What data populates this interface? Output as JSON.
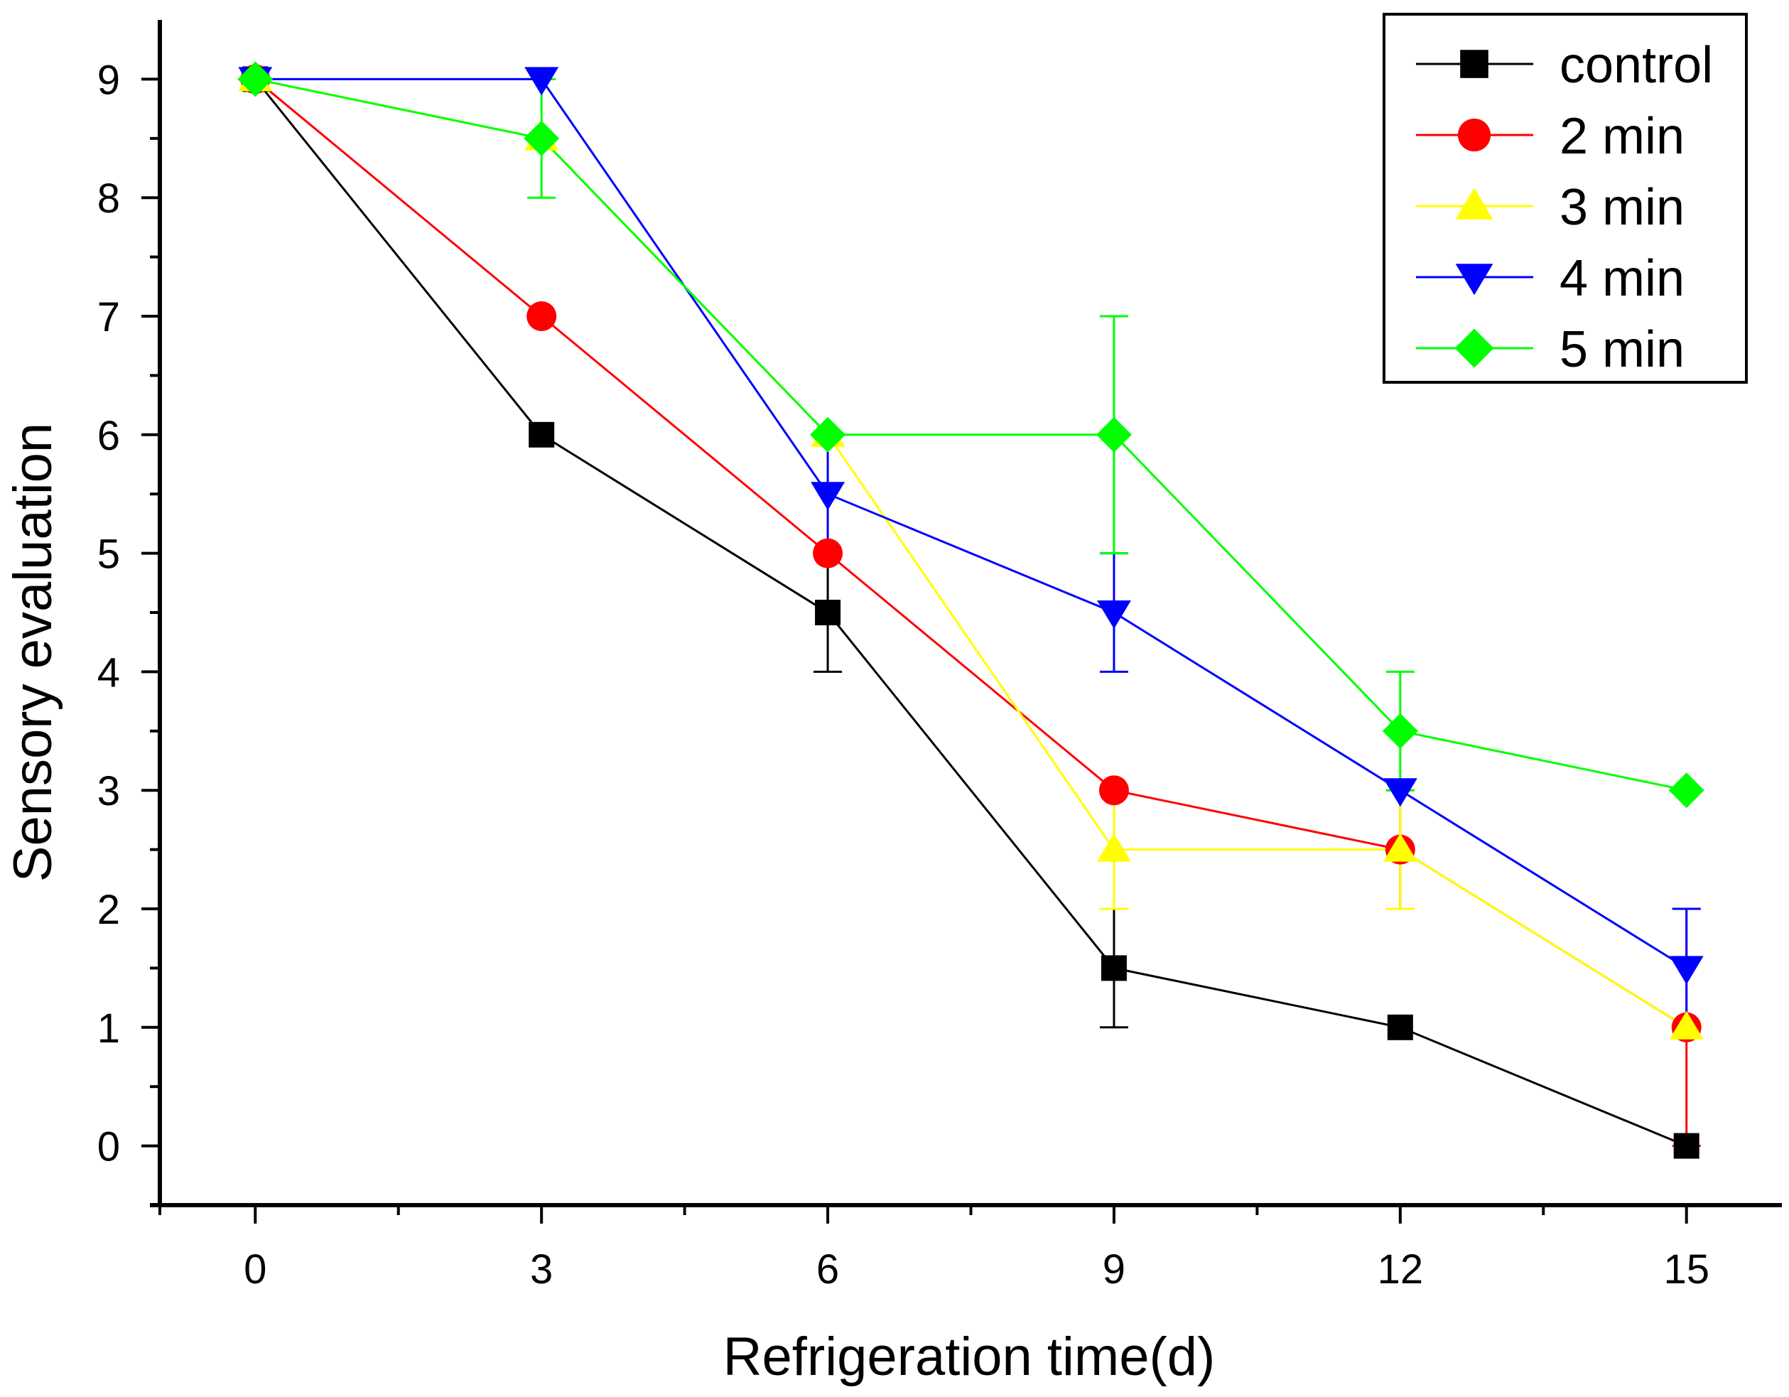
{
  "chart_data": {
    "type": "line",
    "title": "",
    "xlabel": "Refrigeration time(d)",
    "ylabel": "Sensory evaluation",
    "x": [
      0,
      3,
      6,
      9,
      12,
      15
    ],
    "x_ticks": [
      "0",
      "3",
      "6",
      "9",
      "12",
      "15"
    ],
    "y_ticks": [
      "0",
      "1",
      "2",
      "3",
      "4",
      "5",
      "6",
      "7",
      "8",
      "9"
    ],
    "xlim": [
      -1,
      16
    ],
    "ylim": [
      -0.5,
      9.5
    ],
    "grid": false,
    "legend_position": "top-right",
    "series": [
      {
        "name": "control",
        "color": "#000000",
        "marker": "square",
        "values": [
          9,
          6,
          4.5,
          1.5,
          1,
          0
        ],
        "errors": [
          0,
          0,
          0.5,
          0.5,
          0,
          0
        ]
      },
      {
        "name": "2 min",
        "color": "#ff0000",
        "marker": "circle",
        "values": [
          9,
          7,
          5,
          3,
          2.5,
          1
        ],
        "errors": [
          0,
          0,
          0,
          0,
          0.5,
          1
        ]
      },
      {
        "name": "3 min",
        "color": "#ffff00",
        "marker": "triangle-up",
        "values": [
          9,
          8.5,
          6,
          2.5,
          2.5,
          1
        ],
        "errors": [
          0,
          0,
          0,
          0.5,
          0.5,
          0
        ]
      },
      {
        "name": "4 min",
        "color": "#0000ff",
        "marker": "triangle-down",
        "values": [
          9,
          9,
          5.5,
          4.5,
          3,
          1.5
        ],
        "errors": [
          0,
          0,
          0.5,
          0.5,
          0,
          0.5
        ]
      },
      {
        "name": "5 min",
        "color": "#00ff00",
        "marker": "diamond",
        "values": [
          9,
          8.5,
          6,
          6,
          3.5,
          3
        ],
        "errors": [
          0,
          0.5,
          0,
          1,
          0.5,
          0
        ]
      }
    ]
  }
}
